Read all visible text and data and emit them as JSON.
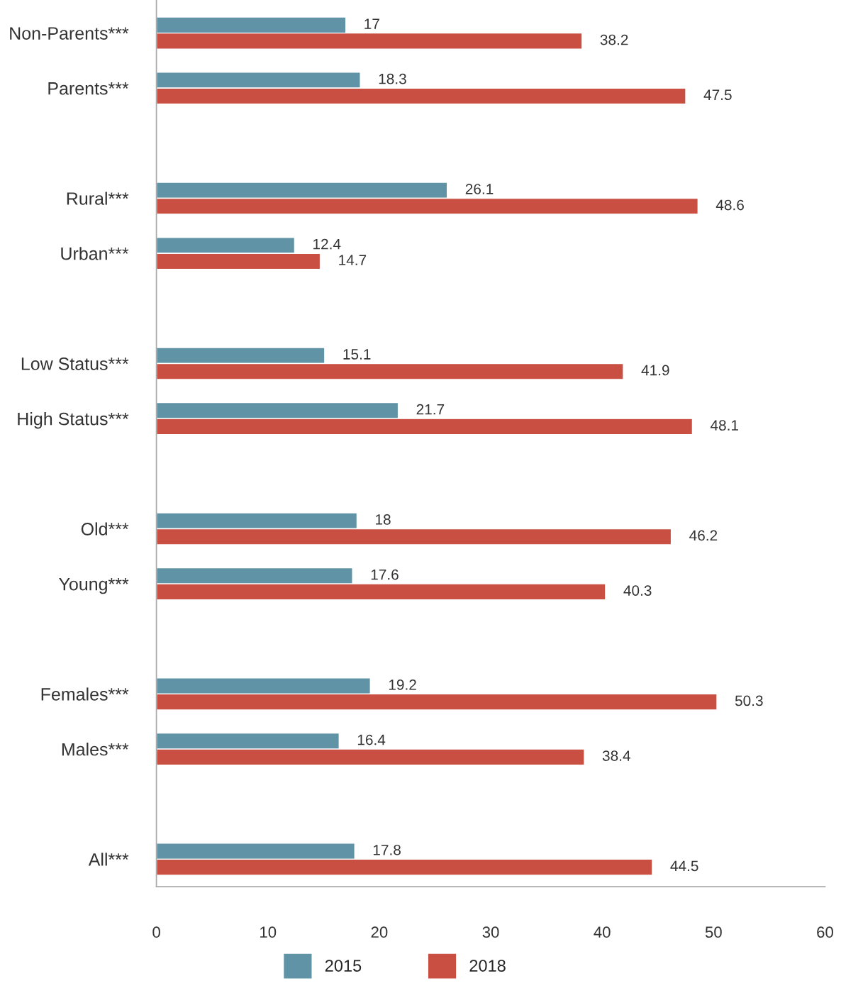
{
  "chart_data": {
    "type": "bar",
    "orientation": "horizontal",
    "categories": [
      "Non-Parents***",
      "Parents***",
      null,
      "Rural***",
      "Urban***",
      null,
      "Low Status***",
      "High Status***",
      null,
      "Old***",
      "Young***",
      null,
      "Females***",
      "Males***",
      null,
      "All***"
    ],
    "series": [
      {
        "name": "2015",
        "color": "#5f93a5",
        "values": [
          17,
          18.3,
          null,
          26.1,
          12.4,
          null,
          15.1,
          21.7,
          null,
          18,
          17.6,
          null,
          19.2,
          16.4,
          null,
          17.8
        ]
      },
      {
        "name": "2018",
        "color": "#c94f42",
        "values": [
          38.2,
          47.5,
          null,
          48.6,
          14.7,
          null,
          41.9,
          48.1,
          null,
          46.2,
          40.3,
          null,
          50.3,
          38.4,
          null,
          44.5
        ]
      }
    ],
    "xlim": [
      0,
      60
    ],
    "xticks": [
      0,
      10,
      20,
      30,
      40,
      50,
      60
    ],
    "data_labels": true,
    "grid": false,
    "legend": "bottom"
  }
}
